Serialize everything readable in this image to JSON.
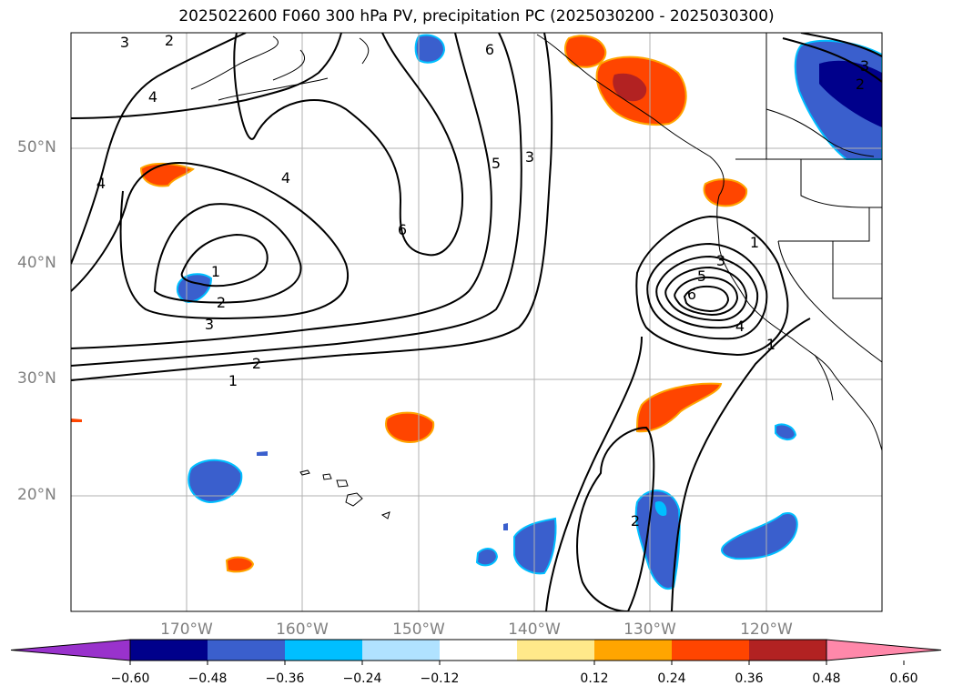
{
  "title": "2025022600 F060 300 hPa PV, precipitation PC (2025030200 - 2025030300)",
  "map": {
    "lat_ticks": [
      "50°N",
      "40°N",
      "30°N",
      "20°N"
    ],
    "lon_ticks": [
      "170°W",
      "160°W",
      "150°W",
      "140°W",
      "130°W",
      "120°W"
    ],
    "contour_labels": [
      "3",
      "2",
      "4",
      "4",
      "4",
      "1",
      "2",
      "3",
      "2",
      "1",
      "6",
      "5",
      "3",
      "6",
      "1",
      "3",
      "5",
      "6",
      "4",
      "1",
      "2",
      "3",
      "2"
    ]
  },
  "colorbar": {
    "tick_labels": [
      "−0.60",
      "−0.48",
      "−0.36",
      "−0.24",
      "−0.12",
      "0.12",
      "0.24",
      "0.36",
      "0.48",
      "0.60"
    ],
    "colors": [
      "#9932cc",
      "#00008b",
      "#3a5fcd",
      "#00bfff",
      "#b0e2ff",
      "#ffffff",
      "#ffe98a",
      "#ffa500",
      "#ff4500",
      "#b22222",
      "#ff88aa"
    ]
  }
}
